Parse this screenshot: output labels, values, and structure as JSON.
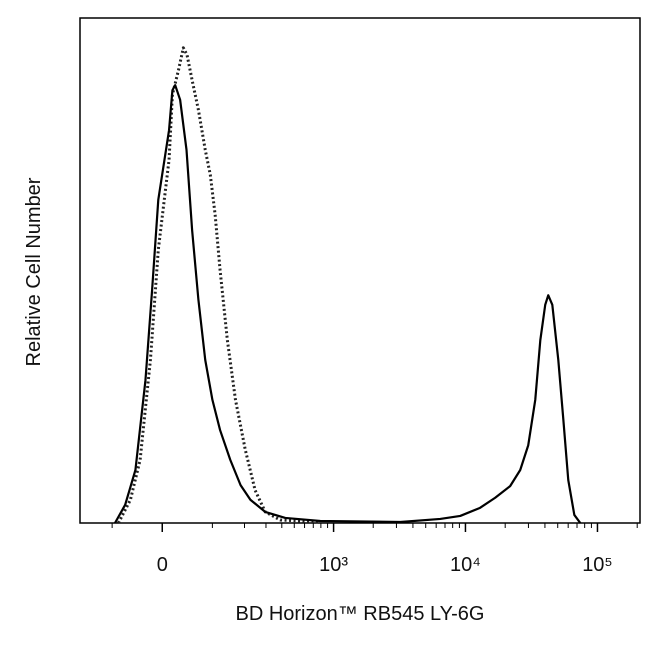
{
  "chart_data": {
    "type": "line",
    "xlabel": "BD Horizon™ RB545 LY-6G",
    "ylabel": "Relative Cell Number",
    "xscale": "biexponential",
    "xlim": [
      -200,
      210000
    ],
    "ylim": [
      0,
      100
    ],
    "xticks": [
      0,
      {
        "value": 1000,
        "label": "10³"
      },
      {
        "value": 10000,
        "label": "10⁴"
      },
      {
        "value": 100000,
        "label": "10⁵"
      }
    ],
    "xminorticks": [
      -100,
      100,
      200,
      300,
      400,
      500,
      600,
      700,
      800,
      900,
      2000,
      3000,
      4000,
      5000,
      6000,
      7000,
      8000,
      9000,
      20000,
      30000,
      40000,
      50000,
      60000,
      70000,
      80000,
      90000,
      200000
    ],
    "series": [
      {
        "style": "dotted",
        "color": "#222222",
        "x": [
          -85,
          -59,
          -40,
          -21,
          -7,
          12,
          18,
          29,
          38,
          45,
          55,
          68,
          83,
          95,
          107,
          120,
          141,
          167,
          203,
          245,
          296,
          389,
          792
        ],
        "values": [
          0,
          4.6,
          12.5,
          32.3,
          54.1,
          71.9,
          84.8,
          89.7,
          94.1,
          92.7,
          87.7,
          81.8,
          73.9,
          68.9,
          61,
          50.1,
          36.2,
          24.4,
          14.5,
          6.5,
          2.2,
          0.6,
          0.2
        ]
      },
      {
        "style": "solid",
        "color": "#000000",
        "x": [
          -93,
          -70,
          -49,
          -30,
          -18,
          -7,
          12,
          18,
          23,
          32,
          44,
          55,
          68,
          83,
          100,
          120,
          150,
          185,
          224,
          296,
          426,
          792,
          3210,
          6440,
          9130,
          12900,
          16800,
          21800,
          26000,
          29900,
          33800,
          36900,
          40200,
          42400,
          45500,
          50500,
          55100,
          60100,
          66800,
          74100
        ],
        "values": [
          0,
          3.6,
          10.5,
          28.3,
          46.1,
          64,
          77.8,
          85.7,
          86.7,
          83.8,
          73.9,
          58,
          44.2,
          32.3,
          24.4,
          18.4,
          12.5,
          7.5,
          4.6,
          2.2,
          1,
          0.4,
          0.2,
          0.8,
          1.4,
          3,
          5,
          7.3,
          10.5,
          15.4,
          24.4,
          36.2,
          43.2,
          45.1,
          43.2,
          32.3,
          20.6,
          8.5,
          1.6,
          0
        ]
      }
    ]
  }
}
